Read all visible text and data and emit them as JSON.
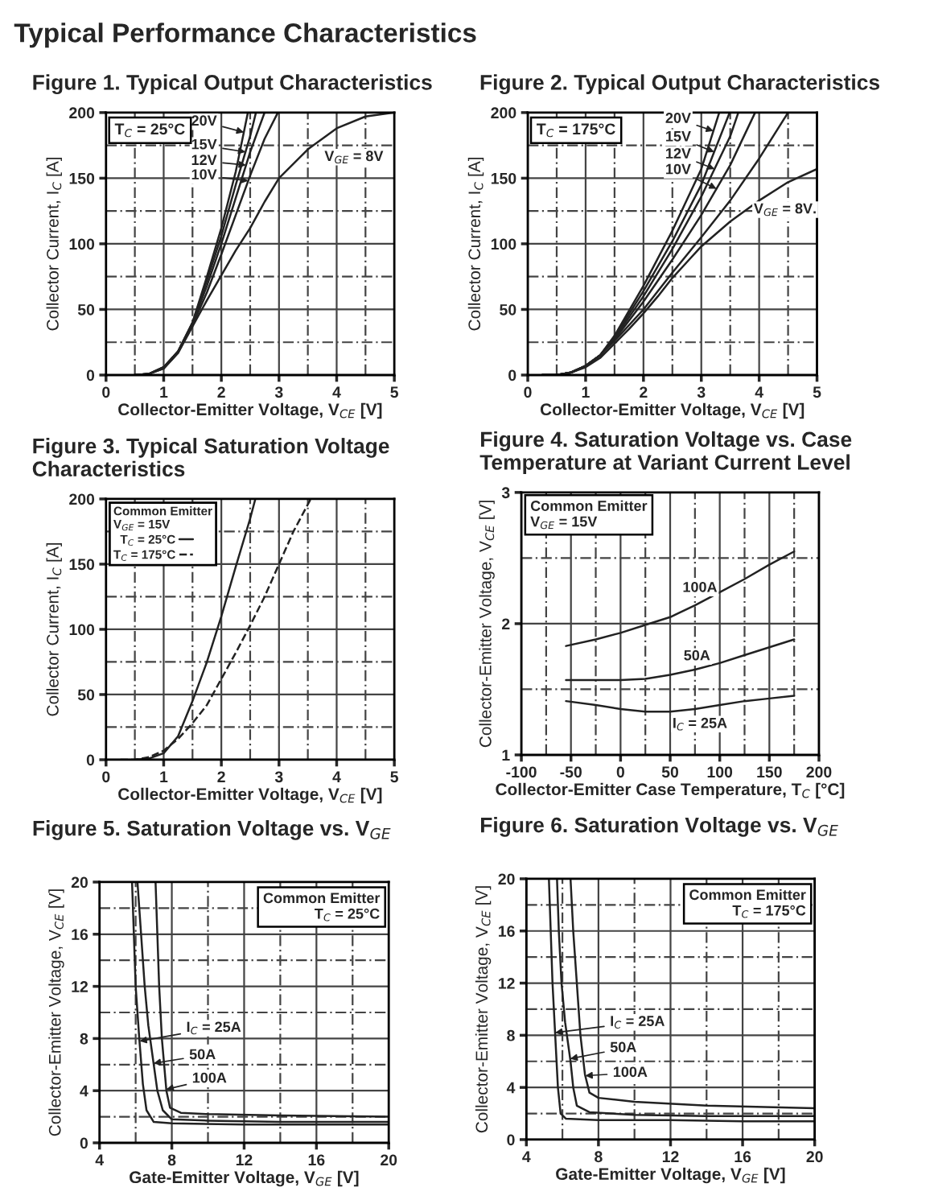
{
  "chart_data": [
    {
      "type": "line",
      "title": "Figure 1. Typical Output Characteristics",
      "xlabel": "Collector-Emitter Voltage, V$_{CE}$ [V]",
      "ylabel": "Collector Current, I$_{C}$ [A]",
      "xlim": [
        0,
        5
      ],
      "ylim": [
        0,
        200
      ],
      "xticks": [
        0,
        1,
        2,
        3,
        4,
        5
      ],
      "yticks": [
        0,
        50,
        100,
        150,
        200
      ],
      "grid": true,
      "line_style": "solid",
      "annotations": [
        "Typical Performance Characteristics",
        "T$_{C}$ = 25°C"
      ],
      "legend": "top",
      "series": [
        {
          "name": "20V",
          "color": "#222222",
          "x": [
            0.5,
            0.75,
            1,
            1.25,
            1.5,
            1.75,
            2,
            2.25,
            2.46
          ],
          "values": [
            0,
            1,
            6,
            18,
            40,
            75,
            112,
            155,
            200
          ]
        },
        {
          "name": "15V",
          "color": "#222222",
          "x": [
            0.5,
            0.75,
            1,
            1.25,
            1.5,
            1.75,
            2,
            2.25,
            2.5,
            2.6
          ],
          "values": [
            0,
            1,
            6,
            18,
            40,
            72,
            106,
            145,
            182,
            200
          ]
        },
        {
          "name": "12V",
          "color": "#222222",
          "x": [
            0.5,
            0.75,
            1,
            1.25,
            1.5,
            1.75,
            2,
            2.25,
            2.5,
            2.75
          ],
          "values": [
            0,
            1,
            6,
            18,
            39,
            68,
            100,
            135,
            170,
            200
          ]
        },
        {
          "name": "10V",
          "color": "#222222",
          "x": [
            0.5,
            0.75,
            1,
            1.25,
            1.5,
            1.75,
            2,
            2.25,
            2.5,
            2.75,
            2.98
          ],
          "values": [
            0,
            1,
            5,
            17,
            38,
            63,
            92,
            122,
            152,
            180,
            200
          ]
        },
        {
          "name": "V$_{GE}$ = 8V",
          "color": "#222222",
          "x": [
            0.5,
            0.75,
            1,
            1.25,
            1.5,
            1.75,
            2,
            2.25,
            2.5,
            2.75,
            3,
            3.5,
            4,
            4.5,
            5
          ],
          "values": [
            0,
            1,
            5,
            17,
            37,
            57,
            76,
            95,
            112,
            132,
            150,
            172,
            188,
            197,
            200
          ]
        }
      ]
    },
    {
      "type": "line",
      "title": "Figure 2. Typical Output Characteristics",
      "xlabel": "Collector-Emitter Voltage, V$_{CE}$ [V]",
      "ylabel": "Collector Current, I$_{C}$ [A]",
      "xlim": [
        0,
        5
      ],
      "ylim": [
        0,
        200
      ],
      "xticks": [
        0,
        1,
        2,
        3,
        4,
        5
      ],
      "yticks": [
        0,
        50,
        100,
        150,
        200
      ],
      "grid": true,
      "line_style": "solid",
      "annotations": [
        "T$_{C}$ = 175°C"
      ],
      "legend": "top",
      "series": [
        {
          "name": "20V",
          "color": "#222222",
          "x": [
            0.25,
            0.5,
            0.75,
            1,
            1.25,
            1.5,
            2,
            2.5,
            3,
            3.31
          ],
          "values": [
            0,
            0,
            2,
            7,
            15,
            30,
            68,
            110,
            157,
            200
          ]
        },
        {
          "name": "15V",
          "color": "#222222",
          "x": [
            0.25,
            0.5,
            0.75,
            1,
            1.25,
            1.5,
            2,
            2.5,
            3,
            3.49
          ],
          "values": [
            0,
            0,
            2,
            7,
            15,
            29,
            64,
            102,
            145,
            200
          ]
        },
        {
          "name": "12V",
          "color": "#222222",
          "x": [
            0.25,
            0.5,
            0.75,
            1,
            1.25,
            1.5,
            2,
            2.5,
            3,
            3.5,
            3.64
          ],
          "values": [
            0,
            0,
            2,
            7,
            15,
            28,
            60,
            96,
            136,
            182,
            200
          ]
        },
        {
          "name": "10V",
          "color": "#222222",
          "x": [
            0.25,
            0.5,
            0.75,
            1,
            1.25,
            1.5,
            2,
            2.5,
            3,
            3.5,
            3.93
          ],
          "values": [
            0,
            0,
            2,
            7,
            15,
            27,
            56,
            88,
            122,
            160,
            200
          ]
        },
        {
          "color": "#222222",
          "x": [
            0.25,
            0.5,
            0.75,
            1,
            1.25,
            1.5,
            2,
            2.5,
            3,
            3.5,
            4,
            4.5
          ],
          "values": [
            0,
            0,
            2,
            7,
            15,
            26,
            50,
            78,
            105,
            133,
            165,
            200
          ]
        },
        {
          "name": "V$_{GE}$ = 8V.",
          "color": "#222222",
          "x": [
            0.25,
            0.5,
            0.75,
            1,
            1.25,
            1.5,
            1.75,
            2,
            2.25,
            2.5,
            2.75,
            3,
            3.5,
            4,
            4.5,
            5
          ],
          "values": [
            0,
            0,
            2,
            6,
            13,
            24,
            35,
            47,
            60,
            74,
            86,
            98,
            117,
            133,
            147,
            157
          ]
        }
      ]
    },
    {
      "type": "line",
      "title": "Figure 3. Typical Saturation Voltage\nCharacteristics",
      "xlabel": "Collector-Emitter Voltage, V$_{CE}$ [V]",
      "ylabel": "Collector Current, I$_{C}$ [A]",
      "xlim": [
        0,
        5
      ],
      "ylim": [
        0,
        200
      ],
      "xticks": [
        0,
        1,
        2,
        3,
        4,
        5
      ],
      "yticks": [
        0,
        50,
        100,
        150,
        200
      ],
      "grid": true,
      "line_style": "solid",
      "legend": "top left",
      "legend_title": "Common Emitter\nV$_{GE}$ = 15V",
      "series": [
        {
          "name": "T$_{C}$ = 25°C",
          "color": "#222222",
          "x": [
            0.5,
            0.75,
            1,
            1.25,
            1.5,
            1.75,
            2,
            2.25,
            2.5,
            2.59
          ],
          "values": [
            0,
            1,
            5,
            18,
            45,
            75,
            110,
            148,
            185,
            200
          ]
        },
        {
          "name": "T$_{C}$ = 175°C",
          "color": "#222222",
          "line_style": "dashed",
          "x": [
            0.25,
            0.5,
            0.75,
            1,
            1.25,
            1.5,
            1.75,
            2,
            2.25,
            2.5,
            2.75,
            3,
            3.25,
            3.55
          ],
          "values": [
            0,
            0,
            2,
            7,
            16,
            28,
            42,
            62,
            82,
            103,
            125,
            150,
            175,
            200
          ]
        }
      ]
    },
    {
      "type": "line",
      "title": "Figure 4. Saturation Voltage vs. Case\nTemperature at Variant Current Level",
      "xlabel": "Collector-Emitter Case Temperature, T$_{C}$ [°C]",
      "ylabel": "Collector-Emitter Voltage, V$_{CE}$ [V]",
      "xlim": [
        -100,
        200
      ],
      "ylim": [
        1,
        3
      ],
      "xticks": [
        -100,
        -50,
        0,
        50,
        100,
        150,
        200
      ],
      "yticks": [
        1,
        2,
        3
      ],
      "grid": true,
      "line_style": "solid",
      "annotations": [
        "Common Emitter\nV$_{GE}$ = 15V"
      ],
      "series": [
        {
          "name": "100A",
          "color": "#222222",
          "x": [
            -55,
            -25,
            0,
            25,
            50,
            75,
            100,
            125,
            150,
            175
          ],
          "values": [
            1.83,
            1.88,
            1.93,
            1.99,
            2.05,
            2.14,
            2.24,
            2.34,
            2.45,
            2.55
          ]
        },
        {
          "name": "50A",
          "color": "#222222",
          "x": [
            -55,
            -25,
            0,
            25,
            50,
            75,
            100,
            125,
            150,
            175
          ],
          "values": [
            1.57,
            1.57,
            1.57,
            1.58,
            1.61,
            1.65,
            1.7,
            1.76,
            1.82,
            1.88
          ]
        },
        {
          "name": "I$_{C}$ = 25A",
          "color": "#222222",
          "x": [
            -55,
            -25,
            0,
            25,
            50,
            75,
            100,
            125,
            150,
            175
          ],
          "values": [
            1.41,
            1.38,
            1.35,
            1.33,
            1.33,
            1.35,
            1.38,
            1.41,
            1.43,
            1.45
          ]
        }
      ]
    },
    {
      "type": "line",
      "title": "Figure 5. Saturation Voltage vs. V$_{GE}$",
      "xlabel": "Gate-Emitter Voltage, V$_{GE}$ [V]",
      "ylabel": "Collector-Emitter Voltage, V$_{CE}$ [V]",
      "xlim": [
        4,
        20
      ],
      "ylim": [
        0,
        20
      ],
      "xticks": [
        4,
        8,
        12,
        16,
        20
      ],
      "yticks": [
        0,
        4,
        8,
        12,
        16,
        20
      ],
      "grid": true,
      "line_style": "solid",
      "annotations": [
        "Common Emitter\nT$_{C}$ = 25°C"
      ],
      "legend": "left",
      "series": [
        {
          "name": "I$_{C}$ = 25A",
          "color": "#222222",
          "x": [
            5.8,
            5.9,
            6.0,
            6.2,
            6.4,
            6.6,
            7,
            8,
            12,
            16,
            20
          ],
          "values": [
            20,
            16,
            12,
            8,
            4.5,
            2.5,
            1.6,
            1.5,
            1.4,
            1.4,
            1.4
          ]
        },
        {
          "name": "50A",
          "color": "#222222",
          "x": [
            6.1,
            6.3,
            6.5,
            6.7,
            7.0,
            7.2,
            7.5,
            8,
            10,
            14,
            20
          ],
          "values": [
            20,
            16,
            12,
            9,
            6,
            4,
            2.5,
            1.8,
            1.7,
            1.6,
            1.6
          ]
        },
        {
          "name": "100A",
          "color": "#222222",
          "x": [
            7.1,
            7.2,
            7.3,
            7.45,
            7.7,
            7.9,
            8.5,
            10,
            14,
            20
          ],
          "values": [
            20,
            16,
            12,
            8,
            4,
            2.7,
            2.3,
            2.2,
            2.1,
            2.0
          ]
        }
      ]
    },
    {
      "type": "line",
      "title": "Figure 6. Saturation Voltage vs. V$_{GE}$",
      "xlabel": "Gate-Emitter Voltage, V$_{GE}$ [V]",
      "ylabel": "Collector-Emitter Voltage, V$_{CE}$ [V]",
      "xlim": [
        4,
        20
      ],
      "ylim": [
        0,
        20
      ],
      "xticks": [
        4,
        8,
        12,
        16,
        20
      ],
      "yticks": [
        0,
        4,
        8,
        12,
        16,
        20
      ],
      "grid": true,
      "line_style": "solid",
      "annotations": [
        "Common Emitter\nT$_{C}$ = 175°C"
      ],
      "legend": "left",
      "series": [
        {
          "name": "I$_{C}$ = 25A",
          "color": "#222222",
          "x": [
            5.25,
            5.35,
            5.45,
            5.6,
            5.75,
            5.9,
            6.2,
            8,
            12,
            16,
            20
          ],
          "values": [
            20,
            16,
            12,
            8,
            4,
            2.0,
            1.6,
            1.5,
            1.5,
            1.4,
            1.4
          ]
        },
        {
          "name": "50A",
          "color": "#222222",
          "x": [
            5.7,
            5.8,
            5.95,
            6.15,
            6.45,
            6.6,
            6.8,
            7.5,
            10,
            14,
            20
          ],
          "values": [
            20,
            16,
            12,
            9,
            6,
            4,
            2.6,
            2.1,
            1.9,
            1.8,
            1.8
          ]
        },
        {
          "name": "100A",
          "color": "#222222",
          "x": [
            6.45,
            6.6,
            6.8,
            7.0,
            7.25,
            7.5,
            8,
            10,
            14,
            20
          ],
          "values": [
            20,
            16,
            12,
            8,
            5,
            3.6,
            3.2,
            2.9,
            2.6,
            2.4
          ]
        }
      ]
    }
  ]
}
